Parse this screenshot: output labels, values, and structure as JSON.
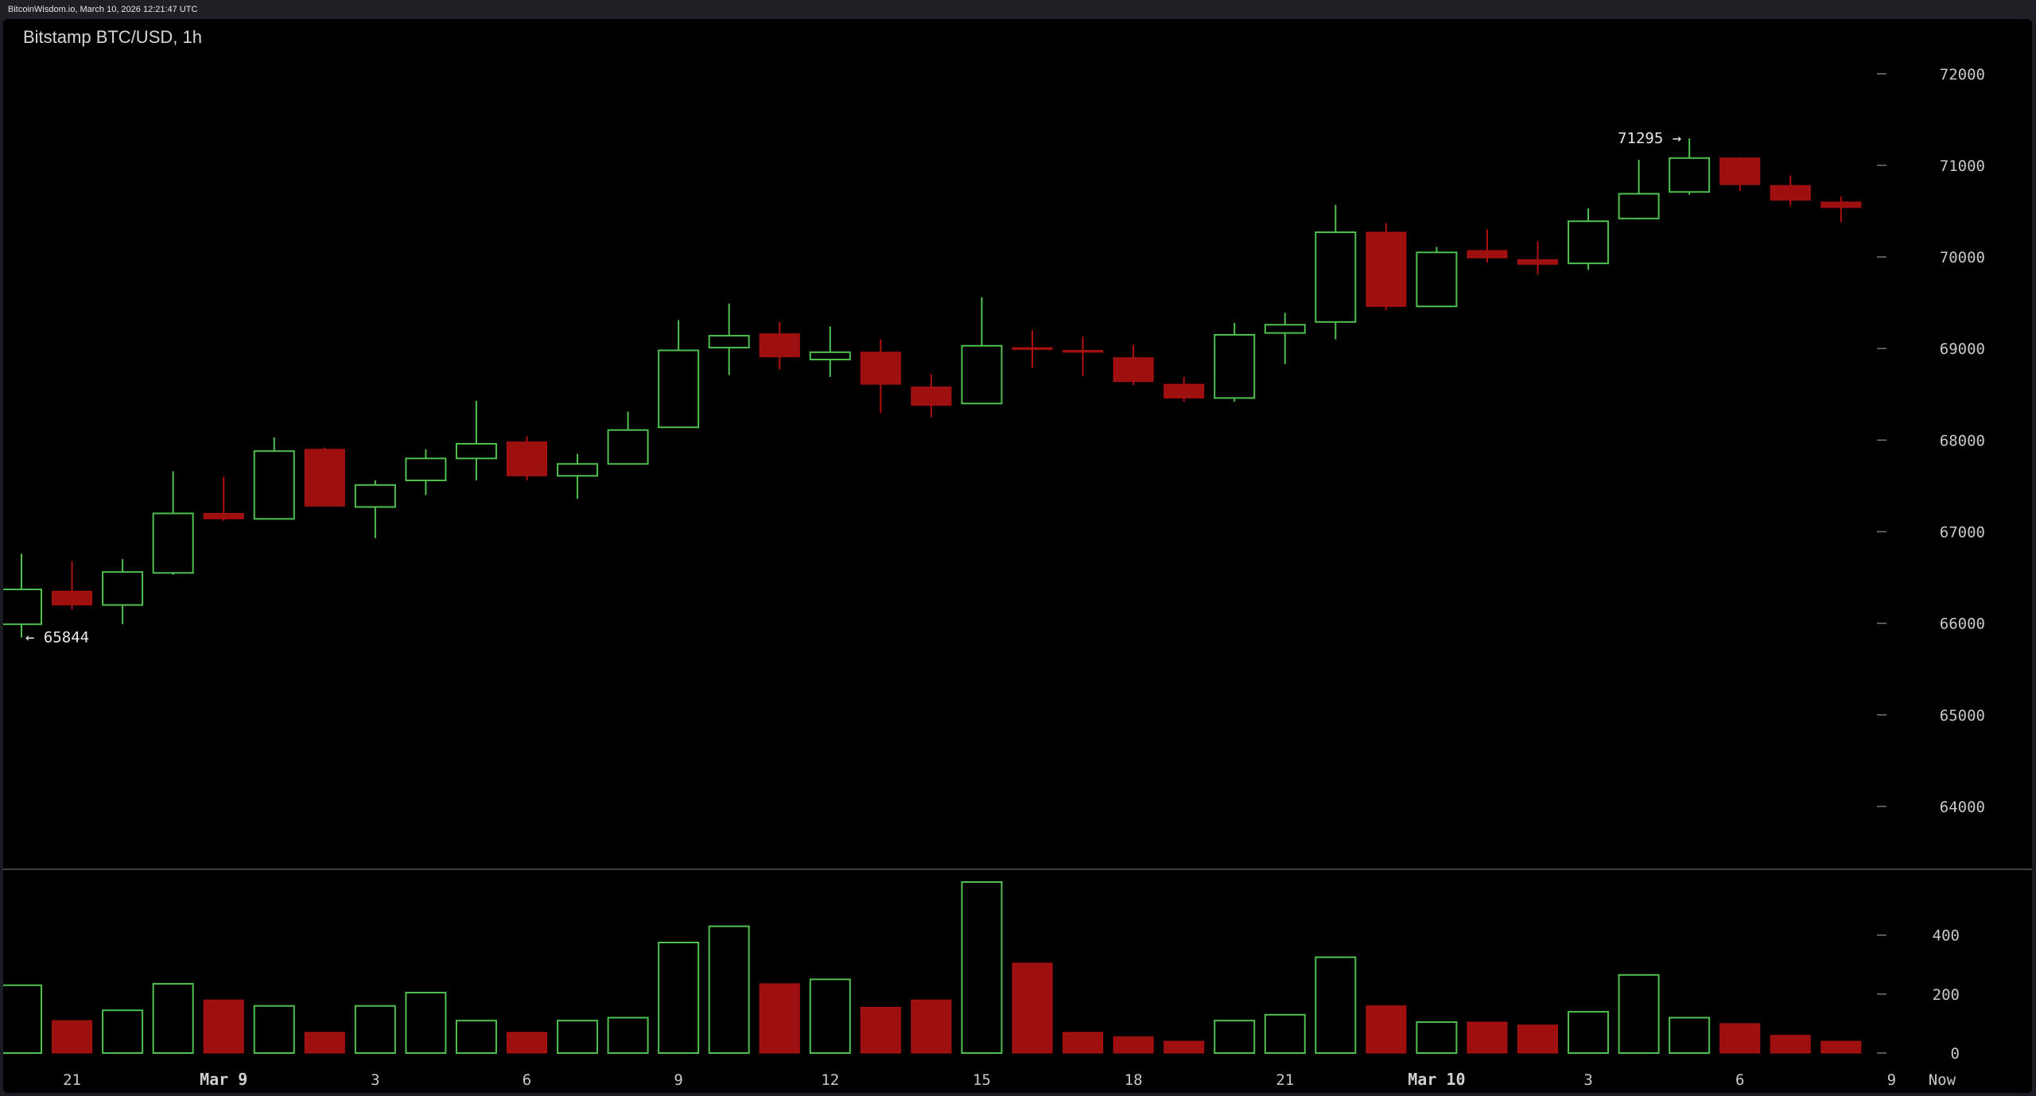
{
  "header": {
    "status_text": "BitcoinWisdom.io, March 10, 2026 12:21:47 UTC"
  },
  "colors": {
    "up": "#4fc04f",
    "down": "#b01010",
    "down_body": "#9e1010",
    "background": "#000000",
    "grid_line": "#555555"
  },
  "chart_data": {
    "type": "candlestick",
    "title": "Bitstamp BTC/USD, 1h",
    "price_axis": {
      "ticks": [
        64000,
        65000,
        66000,
        67000,
        68000,
        69000,
        70000,
        71000,
        72000
      ],
      "range": [
        63600,
        72250
      ]
    },
    "volume_axis": {
      "ticks": [
        0,
        200,
        400
      ],
      "range": [
        0,
        580
      ]
    },
    "x_labels": [
      {
        "label": "21",
        "index": 1,
        "bold": false
      },
      {
        "label": "Mar 9",
        "index": 4,
        "bold": true
      },
      {
        "label": "3",
        "index": 7,
        "bold": false
      },
      {
        "label": "6",
        "index": 10,
        "bold": false
      },
      {
        "label": "9",
        "index": 13,
        "bold": false
      },
      {
        "label": "12",
        "index": 16,
        "bold": false
      },
      {
        "label": "15",
        "index": 19,
        "bold": false
      },
      {
        "label": "18",
        "index": 22,
        "bold": false
      },
      {
        "label": "21",
        "index": 25,
        "bold": false
      },
      {
        "label": "Mar 10",
        "index": 28,
        "bold": true
      },
      {
        "label": "3",
        "index": 31,
        "bold": false
      },
      {
        "label": "6",
        "index": 34,
        "bold": false
      },
      {
        "label": "9",
        "index": 37,
        "bold": false
      },
      {
        "label": "Now",
        "index": 38,
        "bold": false
      }
    ],
    "annotations": {
      "high": {
        "label": "71295 →",
        "index": 33,
        "value": 71295
      },
      "low": {
        "label": "← 65844",
        "index": 0,
        "value": 65844
      }
    },
    "candles": [
      {
        "o": 65990,
        "h": 66760,
        "l": 65844,
        "c": 66370,
        "v": 230
      },
      {
        "o": 66350,
        "h": 66680,
        "l": 66150,
        "c": 66200,
        "v": 110
      },
      {
        "o": 66200,
        "h": 66700,
        "l": 65990,
        "c": 66560,
        "v": 145
      },
      {
        "o": 66550,
        "h": 67660,
        "l": 66530,
        "c": 67200,
        "v": 235
      },
      {
        "o": 67200,
        "h": 67600,
        "l": 67120,
        "c": 67140,
        "v": 180
      },
      {
        "o": 67140,
        "h": 68030,
        "l": 67130,
        "c": 67880,
        "v": 160
      },
      {
        "o": 67900,
        "h": 67920,
        "l": 67280,
        "c": 67280,
        "v": 70
      },
      {
        "o": 67270,
        "h": 67560,
        "l": 66930,
        "c": 67510,
        "v": 160
      },
      {
        "o": 67560,
        "h": 67900,
        "l": 67400,
        "c": 67800,
        "v": 205
      },
      {
        "o": 67800,
        "h": 68430,
        "l": 67560,
        "c": 67960,
        "v": 110
      },
      {
        "o": 67980,
        "h": 68040,
        "l": 67560,
        "c": 67610,
        "v": 70
      },
      {
        "o": 67610,
        "h": 67850,
        "l": 67360,
        "c": 67740,
        "v": 110
      },
      {
        "o": 67740,
        "h": 68310,
        "l": 67740,
        "c": 68110,
        "v": 120
      },
      {
        "o": 68140,
        "h": 69310,
        "l": 68140,
        "c": 68980,
        "v": 375
      },
      {
        "o": 69010,
        "h": 69490,
        "l": 68710,
        "c": 69140,
        "v": 430
      },
      {
        "o": 69160,
        "h": 69290,
        "l": 68770,
        "c": 68910,
        "v": 235
      },
      {
        "o": 68880,
        "h": 69240,
        "l": 68690,
        "c": 68960,
        "v": 250
      },
      {
        "o": 68960,
        "h": 69100,
        "l": 68300,
        "c": 68610,
        "v": 155
      },
      {
        "o": 68580,
        "h": 68720,
        "l": 68250,
        "c": 68380,
        "v": 180
      },
      {
        "o": 68400,
        "h": 69560,
        "l": 68400,
        "c": 69030,
        "v": 580
      },
      {
        "o": 69010,
        "h": 69200,
        "l": 68790,
        "c": 68990,
        "v": 305
      },
      {
        "o": 68980,
        "h": 69130,
        "l": 68700,
        "c": 68960,
        "v": 70
      },
      {
        "o": 68900,
        "h": 69040,
        "l": 68600,
        "c": 68640,
        "v": 55
      },
      {
        "o": 68610,
        "h": 68690,
        "l": 68420,
        "c": 68460,
        "v": 40
      },
      {
        "o": 68460,
        "h": 69280,
        "l": 68420,
        "c": 69150,
        "v": 110
      },
      {
        "o": 69170,
        "h": 69390,
        "l": 68830,
        "c": 69260,
        "v": 130
      },
      {
        "o": 69290,
        "h": 70570,
        "l": 69100,
        "c": 70270,
        "v": 325
      },
      {
        "o": 70270,
        "h": 70370,
        "l": 69420,
        "c": 69460,
        "v": 160
      },
      {
        "o": 69460,
        "h": 70110,
        "l": 69460,
        "c": 70050,
        "v": 105
      },
      {
        "o": 70070,
        "h": 70300,
        "l": 69940,
        "c": 69990,
        "v": 105
      },
      {
        "o": 69970,
        "h": 70170,
        "l": 69810,
        "c": 69920,
        "v": 95
      },
      {
        "o": 69930,
        "h": 70530,
        "l": 69860,
        "c": 70390,
        "v": 140
      },
      {
        "o": 70420,
        "h": 71060,
        "l": 70410,
        "c": 70690,
        "v": 265
      },
      {
        "o": 70710,
        "h": 71295,
        "l": 70680,
        "c": 71080,
        "v": 120
      },
      {
        "o": 71080,
        "h": 71090,
        "l": 70720,
        "c": 70790,
        "v": 100
      },
      {
        "o": 70780,
        "h": 70890,
        "l": 70560,
        "c": 70620,
        "v": 60
      },
      {
        "o": 70600,
        "h": 70660,
        "l": 70380,
        "c": 70540,
        "v": 40
      }
    ]
  }
}
